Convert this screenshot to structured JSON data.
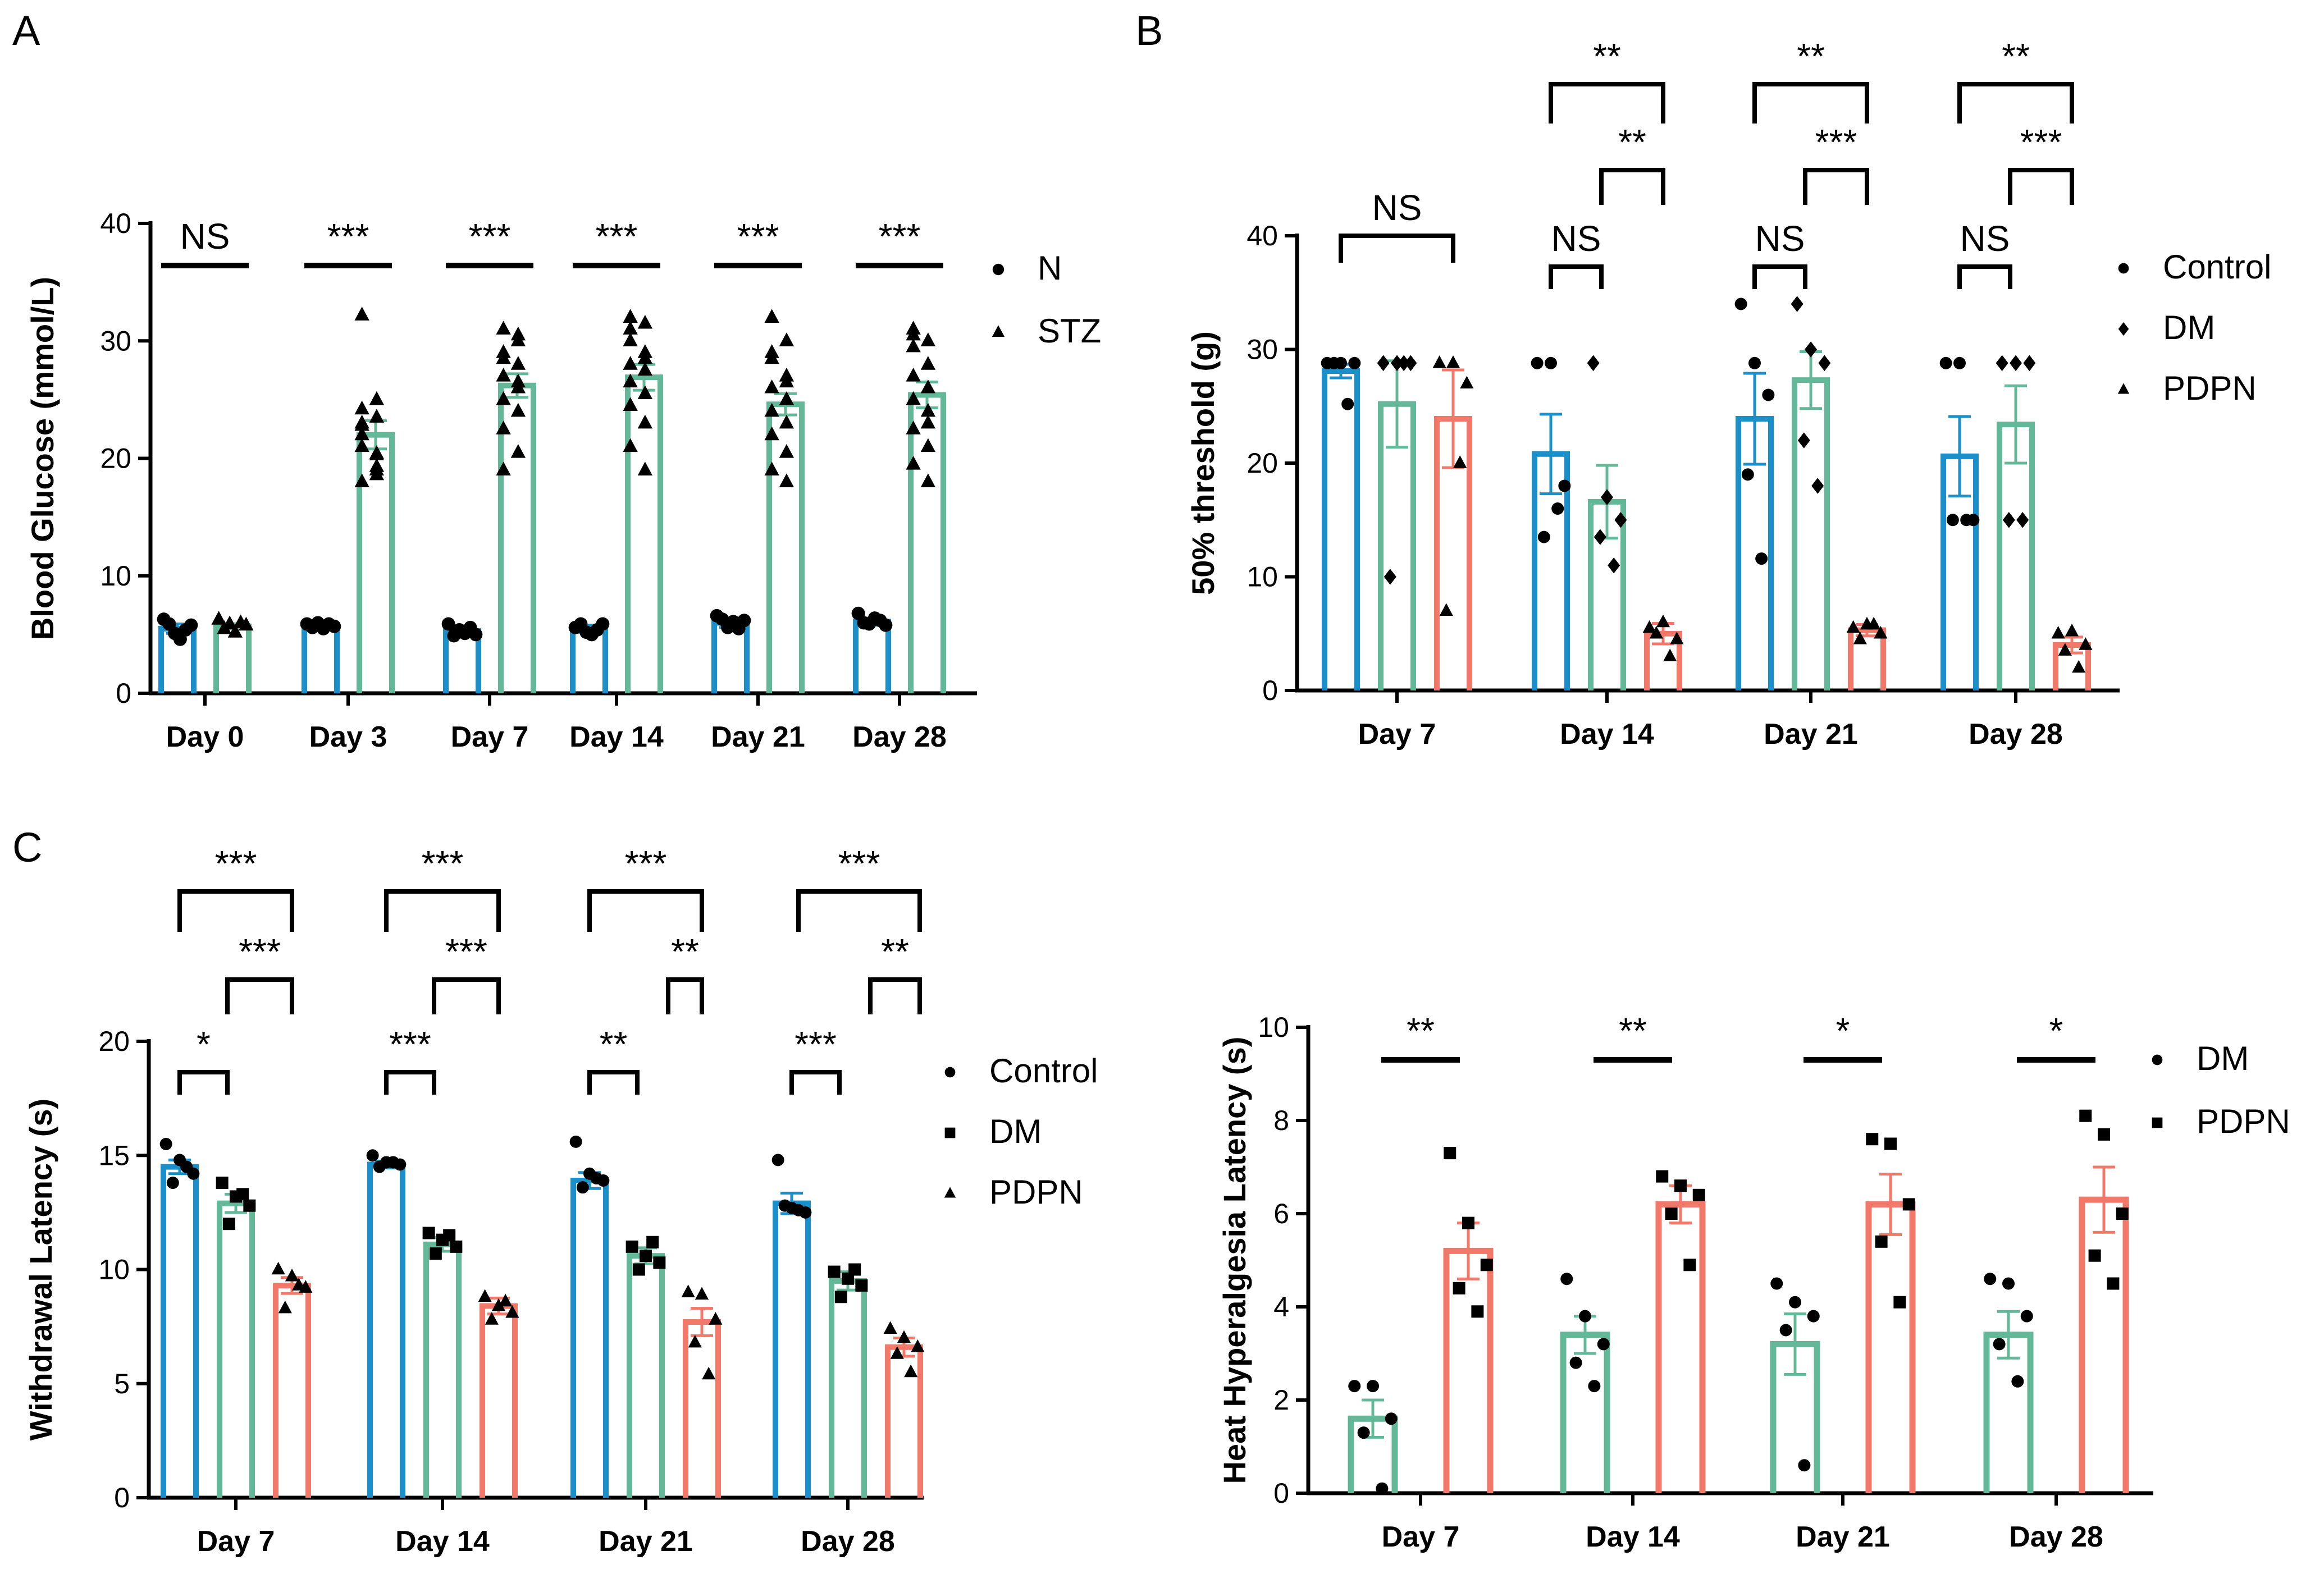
{
  "colors": {
    "N": "#1a8fc9",
    "STZ": "#64b89a",
    "Control": "#1a8fc9",
    "DM": "#64b89a",
    "PDPN": "#f2786a",
    "axis": "#000000"
  },
  "chart_data": [
    {
      "id": "A",
      "panel_label": "A",
      "type": "bar",
      "ylabel": "Blood Glucose (mmol/L)",
      "ylim": [
        0,
        40
      ],
      "yticks": [
        "0",
        "10",
        "20",
        "30",
        "40"
      ],
      "categories": [
        "Day 0",
        "Day 3",
        "Day 7",
        "Day 14",
        "Day 21",
        "Day 28"
      ],
      "legend": [
        "N",
        "STZ"
      ],
      "series": [
        {
          "name": "N",
          "values": [
            5.5,
            5.8,
            5.3,
            5.5,
            6.0,
            6.1
          ],
          "sem": [
            0.4,
            0.2,
            0.3,
            0.3,
            0.4,
            0.3
          ],
          "points": [
            [
              6.3,
              5.9,
              5.1,
              4.6,
              5.4,
              5.8
            ],
            [
              5.9,
              5.6,
              6.0,
              5.5,
              5.9,
              5.7
            ],
            [
              5.9,
              4.9,
              5.4,
              5.1,
              5.6,
              5.0
            ],
            [
              5.6,
              5.9,
              5.2,
              5.0,
              5.4,
              5.9
            ],
            [
              6.6,
              6.3,
              5.6,
              6.1,
              5.5,
              6.2
            ],
            [
              6.8,
              6.0,
              5.9,
              6.4,
              6.2,
              5.8
            ]
          ]
        },
        {
          "name": "STZ",
          "values": [
            5.7,
            22.0,
            26.2,
            26.9,
            24.6,
            25.4
          ],
          "sem": [
            0.2,
            1.2,
            1.0,
            1.1,
            0.9,
            1.1
          ],
          "points": [
            [
              6.3,
              5.5,
              5.9,
              5.2,
              6.0,
              5.8
            ],
            [
              32.2,
              23.5,
              22.0,
              19.0,
              18.0,
              25.0,
              21.0,
              20.3,
              22.8,
              19.3,
              23.0,
              18.6,
              24.2,
              20.4
            ],
            [
              31.0,
              30.5,
              29.0,
              28.0,
              27.0,
              26.0,
              25.0,
              24.0,
              22.5,
              20.5,
              19.0,
              30.0,
              28.5,
              26.5
            ],
            [
              32.0,
              31.5,
              30.0,
              29.0,
              28.0,
              27.5,
              26.5,
              25.5,
              24.5,
              23.0,
              21.0,
              19.0,
              31.0,
              28.5
            ],
            [
              32.0,
              30.0,
              28.5,
              27.0,
              26.0,
              25.0,
              24.0,
              23.0,
              22.0,
              20.5,
              19.0,
              18.0,
              29.0,
              26.5
            ],
            [
              31.0,
              30.0,
              29.5,
              28.0,
              27.0,
              26.0,
              25.0,
              24.0,
              22.5,
              21.0,
              19.5,
              18.0,
              30.5,
              23.0
            ]
          ]
        }
      ],
      "significance": [
        "NS",
        "***",
        "***",
        "***",
        "***",
        "***"
      ]
    },
    {
      "id": "B",
      "panel_label": "B",
      "type": "bar",
      "ylabel": "50% threshold (g)",
      "ylim": [
        0,
        40
      ],
      "yticks": [
        "0",
        "10",
        "20",
        "30",
        "40"
      ],
      "categories": [
        "Day 7",
        "Day 14",
        "Day 21",
        "Day 28"
      ],
      "legend": [
        "Control",
        "DM",
        "PDPN"
      ],
      "series": [
        {
          "name": "Control",
          "values": [
            28.1,
            20.8,
            23.9,
            20.6
          ],
          "sem": [
            0.6,
            3.5,
            4.0,
            3.5
          ],
          "points": [
            [
              28.8,
              28.8,
              28.8,
              28.8,
              25.2
            ],
            [
              28.8,
              28.8,
              18.0,
              13.5,
              16.0
            ],
            [
              34.0,
              28.8,
              26.0,
              19.0,
              11.6
            ],
            [
              28.8,
              28.8,
              15.0,
              15.0,
              15.0
            ]
          ]
        },
        {
          "name": "DM",
          "values": [
            25.2,
            16.6,
            27.3,
            23.4
          ],
          "sem": [
            3.8,
            3.2,
            2.5,
            3.4
          ],
          "points": [
            [
              28.8,
              28.8,
              28.8,
              10.0,
              28.8
            ],
            [
              28.8,
              17.0,
              15.0,
              13.5,
              11.0
            ],
            [
              34.0,
              30.0,
              28.8,
              22.0,
              18.0
            ],
            [
              28.8,
              28.8,
              28.8,
              15.0,
              15.0
            ]
          ]
        },
        {
          "name": "PDPN",
          "values": [
            23.9,
            5.0,
            5.3,
            4.0
          ],
          "sem": [
            4.3,
            0.9,
            0.5,
            0.7
          ],
          "points": [
            [
              28.8,
              28.8,
              27.0,
              7.0,
              20.0
            ],
            [
              5.5,
              6.0,
              4.5,
              5.0,
              3.0
            ],
            [
              5.5,
              5.8,
              5.0,
              4.5,
              5.8
            ],
            [
              5.0,
              5.2,
              4.0,
              3.5,
              2.0
            ]
          ]
        }
      ],
      "significance": [
        {
          "category": "Day 7",
          "control_vs_pdpn": "NS"
        },
        {
          "category": "Day 14",
          "control_vs_pdpn": "**",
          "dm_vs_pdpn": "**",
          "control_vs_dm": "NS"
        },
        {
          "category": "Day 21",
          "control_vs_pdpn": "**",
          "dm_vs_pdpn": "***",
          "control_vs_dm": "NS"
        },
        {
          "category": "Day 28",
          "control_vs_pdpn": "**",
          "dm_vs_pdpn": "***",
          "control_vs_dm": "NS"
        }
      ]
    },
    {
      "id": "C",
      "panel_label": "C",
      "type": "bar",
      "ylabel": "Withdrawal Latency (s)",
      "ylim": [
        0,
        20
      ],
      "yticks": [
        "0",
        "5",
        "10",
        "15",
        "20"
      ],
      "categories": [
        "Day 7",
        "Day 14",
        "Day 21",
        "Day 28"
      ],
      "legend": [
        "Control",
        "DM",
        "PDPN"
      ],
      "series": [
        {
          "name": "Control",
          "values": [
            14.5,
            14.6,
            13.9,
            12.9
          ],
          "sem": [
            0.3,
            0.15,
            0.35,
            0.45
          ],
          "points": [
            [
              15.5,
              14.8,
              14.2,
              13.8,
              14.5
            ],
            [
              15.0,
              14.7,
              14.6,
              14.5,
              14.7
            ],
            [
              15.6,
              14.2,
              13.9,
              13.6,
              14.0
            ],
            [
              14.8,
              12.7,
              12.5,
              12.8,
              12.6
            ]
          ]
        },
        {
          "name": "DM",
          "values": [
            12.9,
            11.1,
            10.6,
            9.5
          ],
          "sem": [
            0.4,
            0.3,
            0.35,
            0.4
          ],
          "points": [
            [
              13.8,
              13.2,
              12.8,
              12.0,
              13.3
            ],
            [
              11.6,
              11.3,
              11.0,
              10.7,
              11.5
            ],
            [
              11.0,
              10.6,
              10.3,
              10.0,
              11.2
            ],
            [
              9.9,
              9.6,
              9.3,
              8.8,
              10.0
            ]
          ]
        },
        {
          "name": "PDPN",
          "values": [
            9.3,
            8.4,
            7.7,
            6.6
          ],
          "sem": [
            0.35,
            0.35,
            0.6,
            0.4
          ],
          "points": [
            [
              10.0,
              9.7,
              9.2,
              8.3,
              9.3
            ],
            [
              8.8,
              8.4,
              8.1,
              7.8,
              8.6
            ],
            [
              9.0,
              8.9,
              7.8,
              6.8,
              5.4
            ],
            [
              7.4,
              7.0,
              6.6,
              6.3,
              5.5
            ]
          ]
        }
      ],
      "significance": [
        {
          "category": "Day 7",
          "control_vs_pdpn": "***",
          "dm_vs_pdpn": "***",
          "control_vs_dm": "*"
        },
        {
          "category": "Day 14",
          "control_vs_pdpn": "***",
          "dm_vs_pdpn": "***",
          "control_vs_dm": "***"
        },
        {
          "category": "Day 21",
          "control_vs_pdpn": "***",
          "dm_vs_pdpn": "**",
          "control_vs_dm": "**"
        },
        {
          "category": "Day 28",
          "control_vs_pdpn": "***",
          "dm_vs_pdpn": "**",
          "control_vs_dm": "***"
        }
      ]
    },
    {
      "id": "D",
      "type": "bar",
      "ylabel": "Heat Hyperalgesia Latency (s)",
      "ylim": [
        0,
        10
      ],
      "yticks": [
        "0",
        "2",
        "4",
        "6",
        "8",
        "10"
      ],
      "categories": [
        "Day 7",
        "Day 14",
        "Day 21",
        "Day 28"
      ],
      "legend": [
        "DM",
        "PDPN"
      ],
      "series": [
        {
          "name": "DM",
          "values": [
            1.6,
            3.4,
            3.2,
            3.4
          ],
          "sem": [
            0.4,
            0.4,
            0.65,
            0.5
          ],
          "points": [
            [
              2.3,
              2.3,
              1.6,
              1.3,
              0.1
            ],
            [
              4.6,
              3.8,
              3.2,
              2.8,
              2.3
            ],
            [
              4.5,
              4.1,
              3.8,
              3.5,
              0.6
            ],
            [
              4.6,
              4.5,
              3.8,
              3.2,
              2.4
            ]
          ]
        },
        {
          "name": "PDPN",
          "values": [
            5.2,
            6.2,
            6.2,
            6.3
          ],
          "sem": [
            0.6,
            0.4,
            0.65,
            0.7
          ],
          "points": [
            [
              7.3,
              5.8,
              4.9,
              4.4,
              3.9
            ],
            [
              6.8,
              6.6,
              6.4,
              6.0,
              4.9
            ],
            [
              7.6,
              7.5,
              6.2,
              5.4,
              4.1
            ],
            [
              8.1,
              7.7,
              6.0,
              5.1,
              4.5
            ]
          ]
        }
      ],
      "significance": [
        "**",
        "**",
        "*",
        "*"
      ]
    }
  ]
}
